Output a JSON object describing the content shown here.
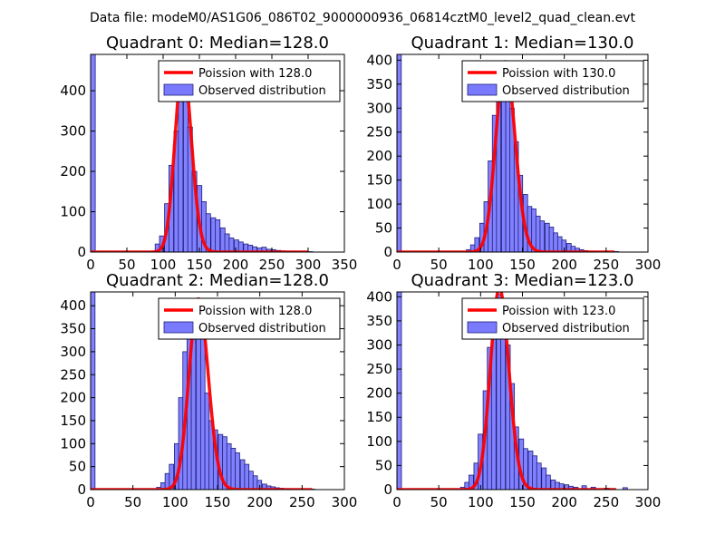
{
  "figure": {
    "suptitle": "Data file: modeM0/AS1G06_086T02_9000000936_06814cztM0_level2_quad_clean.evt"
  },
  "colors": {
    "bar_fill": "#7a7aff",
    "bar_edge": "#1f1f7a",
    "poisson_line": "#ff0000",
    "axes": "#000000",
    "legend_edge": "#000000"
  },
  "chart_data": [
    {
      "type": "bar",
      "title": "Quadrant 0: Median=128.0",
      "xlim": [
        0,
        350
      ],
      "ylim": [
        0,
        490
      ],
      "xticks": [
        0,
        50,
        100,
        150,
        200,
        250,
        300,
        350
      ],
      "yticks": [
        0,
        100,
        200,
        300,
        400
      ],
      "legend": [
        "Poission with 128.0",
        "Observed distribution"
      ],
      "bin_width": 6.4,
      "histogram": [
        [
          0,
          490
        ],
        [
          89,
          20
        ],
        [
          95,
          40
        ],
        [
          102,
          120
        ],
        [
          108,
          215
        ],
        [
          115,
          300
        ],
        [
          121,
          395
        ],
        [
          128,
          430
        ],
        [
          134,
          310
        ],
        [
          140,
          200
        ],
        [
          147,
          165
        ],
        [
          153,
          125
        ],
        [
          159,
          95
        ],
        [
          166,
          85
        ],
        [
          172,
          80
        ],
        [
          179,
          60
        ],
        [
          185,
          45
        ],
        [
          191,
          35
        ],
        [
          198,
          30
        ],
        [
          204,
          25
        ],
        [
          211,
          20
        ],
        [
          217,
          17
        ],
        [
          223,
          13
        ],
        [
          230,
          10
        ],
        [
          236,
          12
        ],
        [
          243,
          7
        ],
        [
          249,
          6
        ],
        [
          256,
          4
        ],
        [
          262,
          3
        ],
        [
          268,
          2
        ],
        [
          275,
          2
        ],
        [
          281,
          1
        ],
        [
          288,
          1
        ],
        [
          300,
          1
        ]
      ],
      "poisson_mean": 128.0,
      "poisson_peak": 463,
      "poisson_range": [
        0,
        300
      ]
    },
    {
      "type": "bar",
      "title": "Quadrant 1: Median=130.0",
      "xlim": [
        0,
        300
      ],
      "ylim": [
        0,
        412
      ],
      "xticks": [
        0,
        50,
        100,
        150,
        200,
        250,
        300
      ],
      "yticks": [
        0,
        50,
        100,
        150,
        200,
        250,
        300,
        350,
        400
      ],
      "legend": [
        "Poission with 130.0",
        "Observed distribution"
      ],
      "bin_width": 5.2,
      "histogram": [
        [
          0,
          412
        ],
        [
          83,
          5
        ],
        [
          88,
          15
        ],
        [
          93,
          30
        ],
        [
          99,
          60
        ],
        [
          104,
          105
        ],
        [
          109,
          190
        ],
        [
          114,
          285
        ],
        [
          119,
          330
        ],
        [
          125,
          380
        ],
        [
          130,
          360
        ],
        [
          135,
          300
        ],
        [
          140,
          230
        ],
        [
          145,
          160
        ],
        [
          151,
          120
        ],
        [
          156,
          95
        ],
        [
          161,
          90
        ],
        [
          166,
          75
        ],
        [
          171,
          65
        ],
        [
          177,
          60
        ],
        [
          182,
          52
        ],
        [
          187,
          40
        ],
        [
          192,
          32
        ],
        [
          197,
          25
        ],
        [
          203,
          18
        ],
        [
          208,
          12
        ],
        [
          213,
          8
        ],
        [
          218,
          5
        ],
        [
          223,
          3
        ],
        [
          229,
          2
        ],
        [
          234,
          1
        ],
        [
          260,
          1
        ]
      ],
      "poisson_mean": 130.0,
      "poisson_peak": 397,
      "poisson_range": [
        0,
        260
      ]
    },
    {
      "type": "bar",
      "title": "Quadrant 2: Median=128.0",
      "xlim": [
        0,
        300
      ],
      "ylim": [
        0,
        430
      ],
      "xticks": [
        0,
        50,
        100,
        150,
        200,
        250,
        300
      ],
      "yticks": [
        0,
        50,
        100,
        150,
        200,
        250,
        300,
        350,
        400
      ],
      "legend": [
        "Poission with 128.0",
        "Observed distribution"
      ],
      "bin_width": 5.2,
      "histogram": [
        [
          0,
          430
        ],
        [
          78,
          5
        ],
        [
          83,
          15
        ],
        [
          88,
          35
        ],
        [
          93,
          55
        ],
        [
          99,
          100
        ],
        [
          104,
          200
        ],
        [
          109,
          300
        ],
        [
          114,
          385
        ],
        [
          119,
          410
        ],
        [
          125,
          395
        ],
        [
          130,
          330
        ],
        [
          135,
          210
        ],
        [
          140,
          150
        ],
        [
          145,
          130
        ],
        [
          151,
          120
        ],
        [
          156,
          115
        ],
        [
          161,
          100
        ],
        [
          166,
          90
        ],
        [
          171,
          80
        ],
        [
          177,
          65
        ],
        [
          182,
          55
        ],
        [
          187,
          40
        ],
        [
          192,
          30
        ],
        [
          197,
          20
        ],
        [
          203,
          12
        ],
        [
          208,
          8
        ],
        [
          213,
          6
        ],
        [
          218,
          4
        ],
        [
          223,
          3
        ],
        [
          229,
          2
        ],
        [
          234,
          1
        ],
        [
          260,
          1
        ]
      ],
      "poisson_mean": 128.0,
      "poisson_peak": 415,
      "poisson_range": [
        0,
        262
      ]
    },
    {
      "type": "bar",
      "title": "Quadrant 3: Median=123.0",
      "xlim": [
        0,
        300
      ],
      "ylim": [
        0,
        410
      ],
      "xticks": [
        0,
        50,
        100,
        150,
        200,
        250,
        300
      ],
      "yticks": [
        0,
        50,
        100,
        150,
        200,
        250,
        300,
        350,
        400
      ],
      "legend": [
        "Poission with 123.0",
        "Observed distribution"
      ],
      "bin_width": 5.4,
      "histogram": [
        [
          0,
          410
        ],
        [
          76,
          5
        ],
        [
          81,
          15
        ],
        [
          86,
          30
        ],
        [
          92,
          55
        ],
        [
          97,
          115
        ],
        [
          103,
          205
        ],
        [
          108,
          295
        ],
        [
          113,
          340
        ],
        [
          119,
          405
        ],
        [
          124,
          395
        ],
        [
          130,
          300
        ],
        [
          135,
          220
        ],
        [
          140,
          130
        ],
        [
          146,
          105
        ],
        [
          151,
          85
        ],
        [
          157,
          80
        ],
        [
          162,
          70
        ],
        [
          167,
          55
        ],
        [
          173,
          45
        ],
        [
          178,
          30
        ],
        [
          184,
          20
        ],
        [
          189,
          15
        ],
        [
          194,
          12
        ],
        [
          200,
          10
        ],
        [
          205,
          7
        ],
        [
          211,
          5
        ],
        [
          221,
          8
        ],
        [
          232,
          5
        ],
        [
          248,
          3
        ],
        [
          254,
          2
        ],
        [
          270,
          4
        ]
      ],
      "poisson_mean": 123.0,
      "poisson_peak": 417,
      "poisson_range": [
        0,
        262
      ]
    }
  ]
}
